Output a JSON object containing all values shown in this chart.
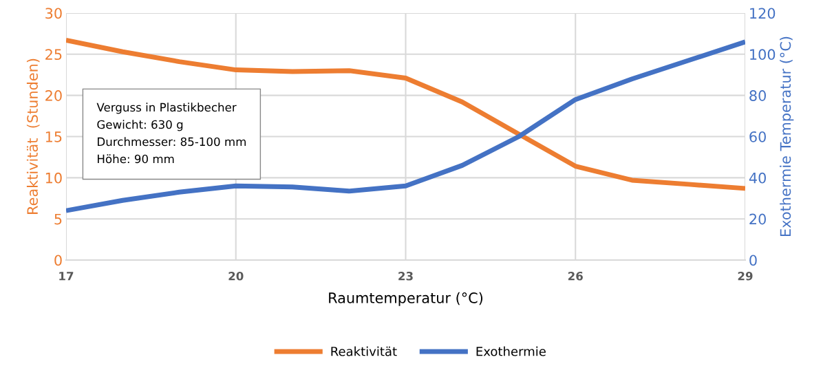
{
  "chart_data": {
    "type": "line",
    "xlabel": "Raumtemperatur (°C)",
    "ylabel": "Reaktivität  (Stunden)",
    "y2label": "Exothermie Temperatur (°C)",
    "x": [
      17,
      18,
      19,
      20,
      21,
      22,
      23,
      24,
      25,
      26,
      27,
      28,
      29
    ],
    "series": [
      {
        "name": "Reaktivität",
        "color": "#ed7d31",
        "values": [
          26.7,
          25.3,
          24.1,
          23.1,
          22.9,
          23.0,
          22.1,
          19.2,
          15.3,
          11.4,
          9.7,
          9.2,
          8.7
        ]
      },
      {
        "name": "Exothermie",
        "color": "#4472c4",
        "values": [
          24,
          29,
          33,
          36,
          35.5,
          33.5,
          36,
          46,
          60,
          78,
          88,
          97,
          106
        ],
        "axis": "y2"
      }
    ],
    "xlim": [
      17,
      29
    ],
    "xticks": [
      17,
      20,
      23,
      26,
      29
    ],
    "ylim": [
      0,
      30
    ],
    "yticks": [
      0,
      5,
      10,
      15,
      20,
      25,
      30
    ],
    "y2lim": [
      0,
      120
    ],
    "y2ticks": [
      0,
      20,
      40,
      60,
      80,
      100,
      120
    ],
    "grid": true,
    "legend": "bottom",
    "marker": "none",
    "line_style": "solid",
    "annotations": [
      "Verguss in Plastikbecher\nGewicht: 630 g\nDurchmesser: 85-100 mm\nHöhe: 90 mm"
    ]
  }
}
